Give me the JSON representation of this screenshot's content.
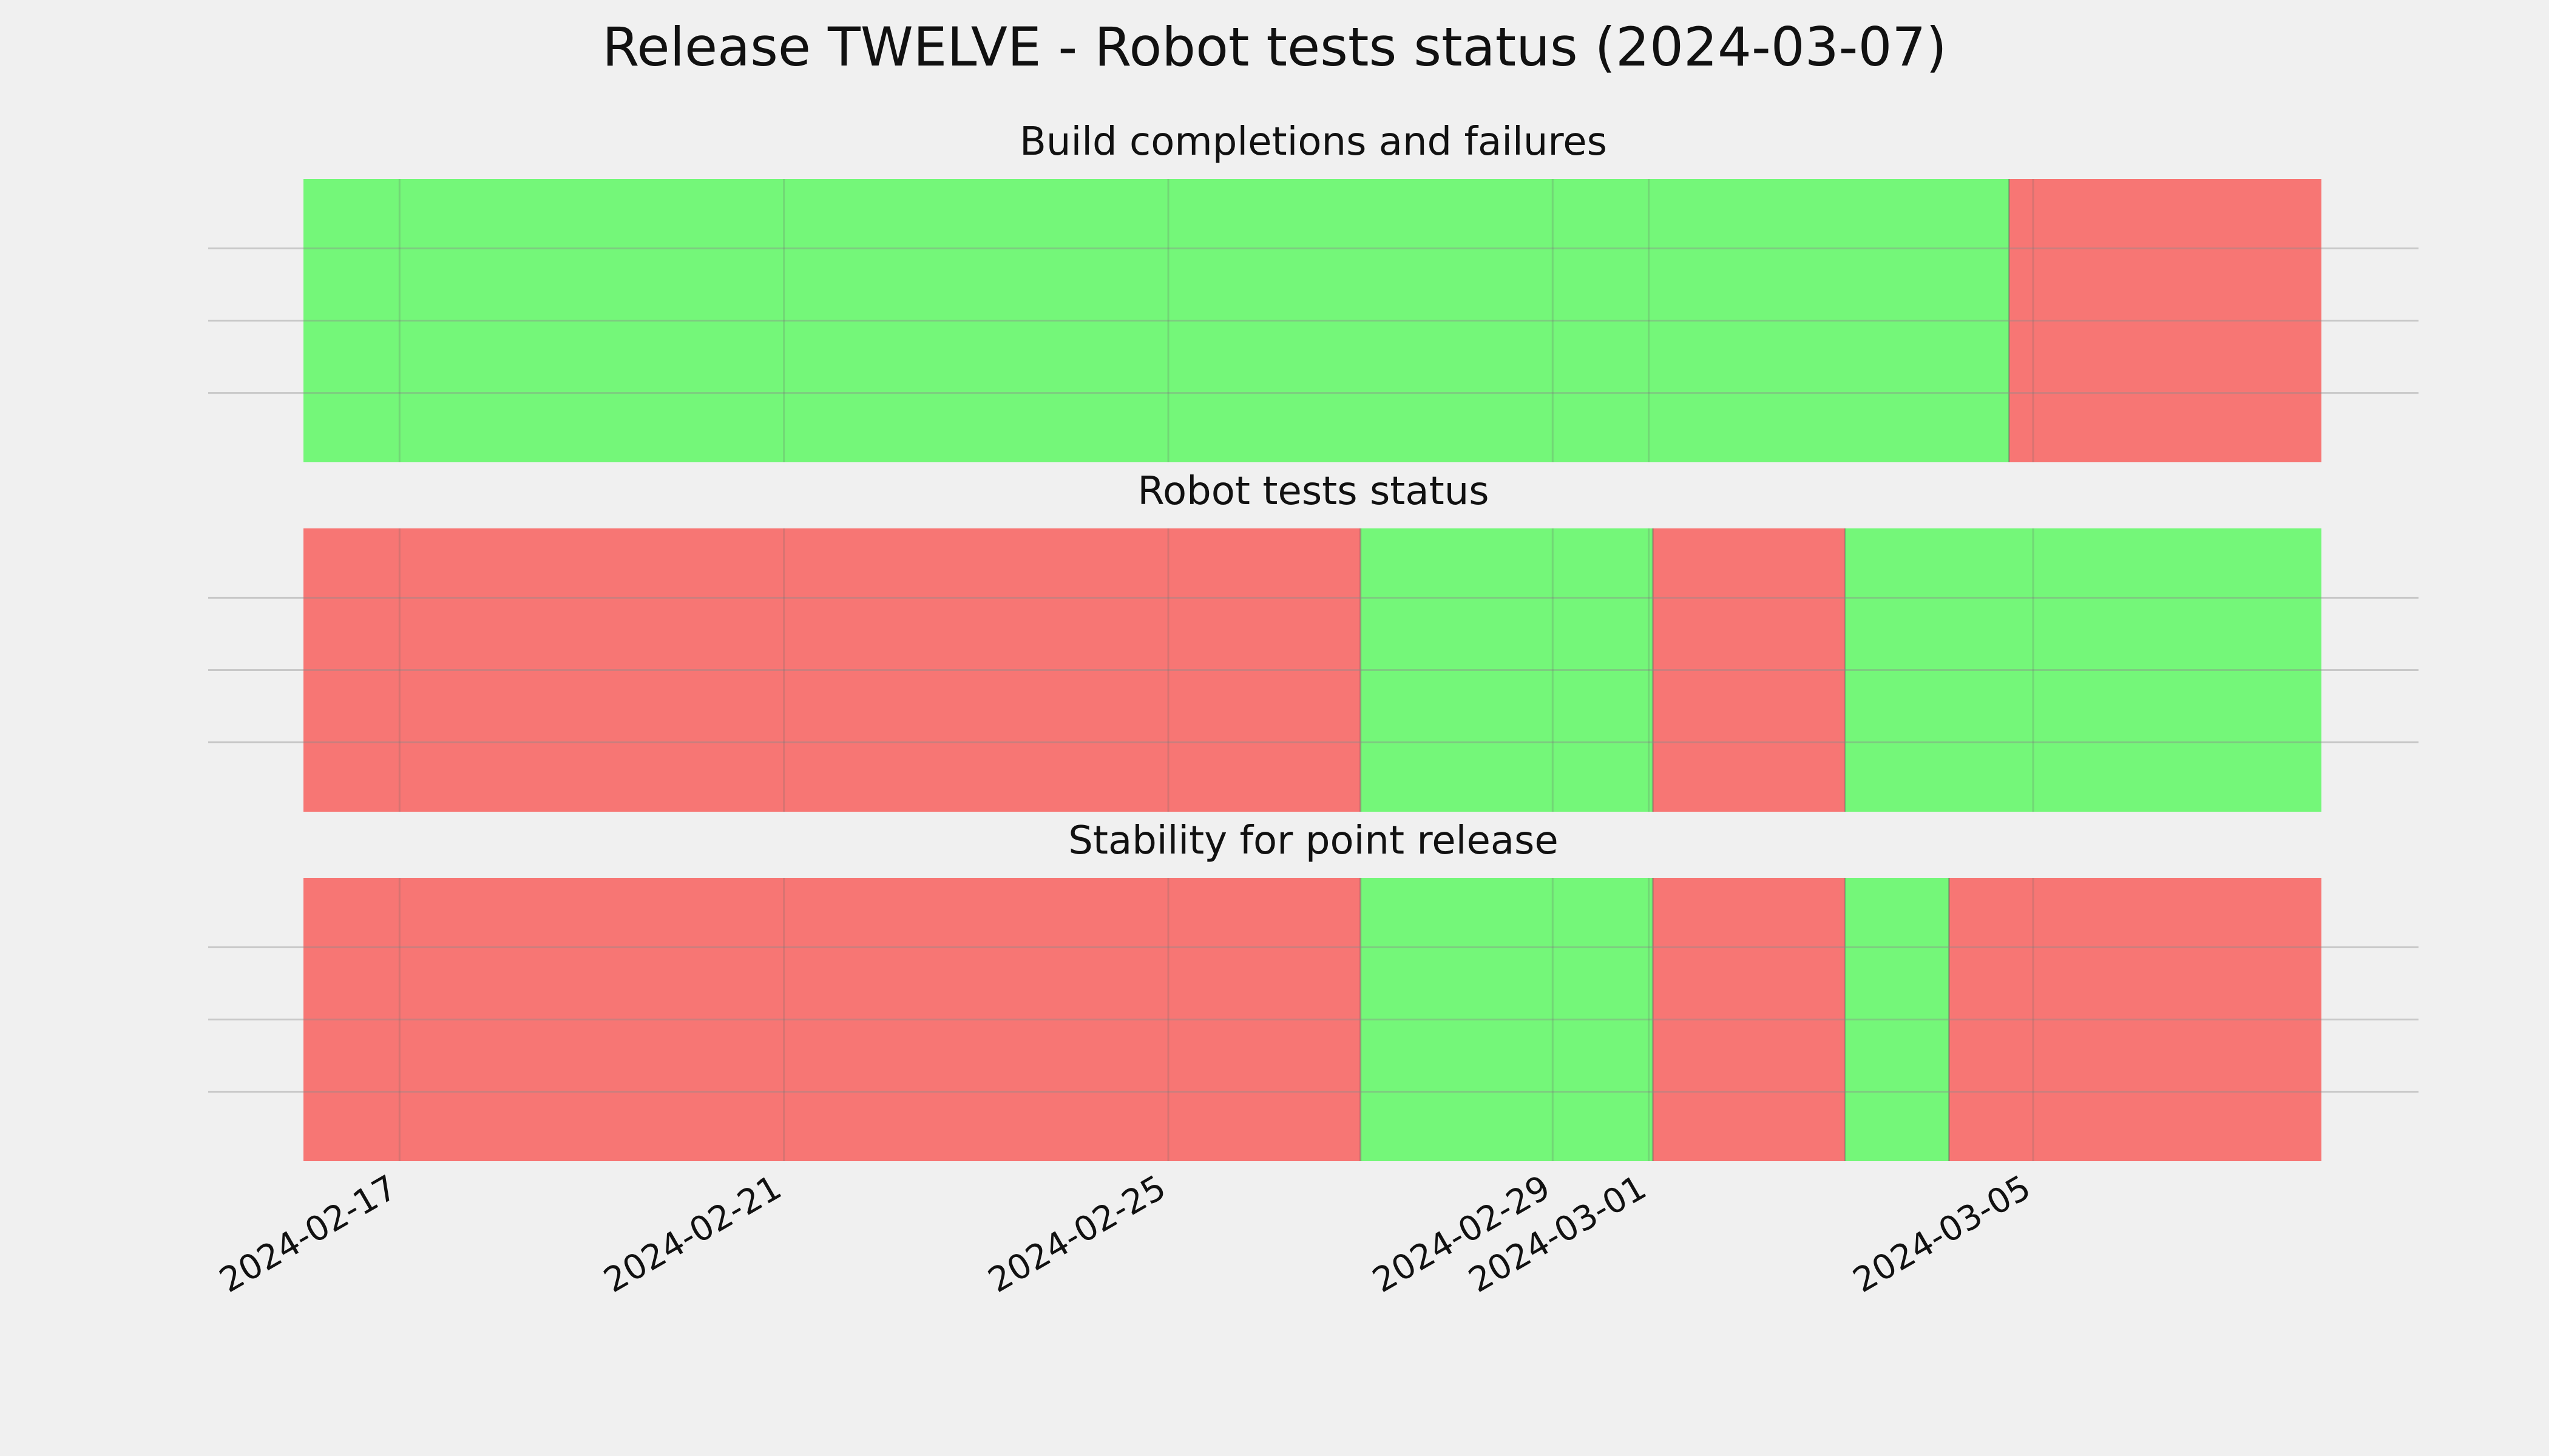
{
  "chart_data": {
    "type": "timeline",
    "title": "Release TWELVE - Robot tests status (2024-03-07)",
    "x_range": [
      "2024-02-16",
      "2024-03-08"
    ],
    "x_ticks": [
      "2024-02-17",
      "2024-02-21",
      "2024-02-25",
      "2024-02-29",
      "2024-03-01",
      "2024-03-05"
    ],
    "grid": true,
    "colors": {
      "pass": "#74f779",
      "fail": "#f77674",
      "background": "#f0f0f0"
    },
    "panels": [
      {
        "subtitle": "Build completions and failures",
        "segments": [
          {
            "start": "2024-02-16",
            "end": "2024-03-04T18:00",
            "status": "pass"
          },
          {
            "start": "2024-03-04T18:00",
            "end": "2024-03-08",
            "status": "fail"
          }
        ]
      },
      {
        "subtitle": "Robot tests status",
        "segments": [
          {
            "start": "2024-02-16",
            "end": "2024-02-27",
            "status": "fail"
          },
          {
            "start": "2024-02-27",
            "end": "2024-03-01T01:00",
            "status": "pass"
          },
          {
            "start": "2024-03-01T01:00",
            "end": "2024-03-03T01:00",
            "status": "fail"
          },
          {
            "start": "2024-03-03T01:00",
            "end": "2024-03-08",
            "status": "pass"
          }
        ]
      },
      {
        "subtitle": "Stability for point release",
        "segments": [
          {
            "start": "2024-02-16",
            "end": "2024-02-27",
            "status": "fail"
          },
          {
            "start": "2024-02-27",
            "end": "2024-03-01T01:00",
            "status": "pass"
          },
          {
            "start": "2024-03-01T01:00",
            "end": "2024-03-03T01:00",
            "status": "fail"
          },
          {
            "start": "2024-03-03T01:00",
            "end": "2024-03-04T03:00",
            "status": "pass"
          },
          {
            "start": "2024-03-04T03:00",
            "end": "2024-03-08",
            "status": "fail"
          }
        ]
      }
    ]
  }
}
